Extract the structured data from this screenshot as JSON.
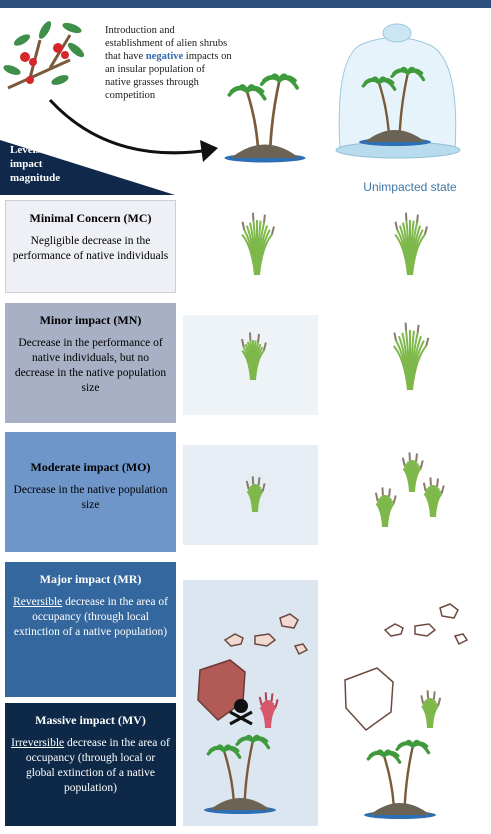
{
  "intro": {
    "before": "Introduction and establishment of alien shrubs that have",
    "highlight": "negative",
    "after": "impacts on an insular population of native grasses through competition"
  },
  "levels_header": "Levels of impact magnitude",
  "unimpacted_label": "Unimpacted state",
  "levels": [
    {
      "title": "Minimal Concern (MC)",
      "description": "Negligible decrease in the performance of native individuals"
    },
    {
      "title": "Minor impact (MN)",
      "description": "Decrease in the performance of native individuals, but no decrease in the native population size"
    },
    {
      "title": "Moderate impact (MO)",
      "description": "Decrease in the native population size"
    },
    {
      "title": "Major impact (MR)",
      "emphasis": "Reversible",
      "description": "decrease in the area of occupancy (through local extinction of a native population)"
    },
    {
      "title": "Massive impact (MV)",
      "emphasis": "Irreversible",
      "description": "decrease in the area of occupancy (through local or global extinction of a native population)"
    }
  ]
}
